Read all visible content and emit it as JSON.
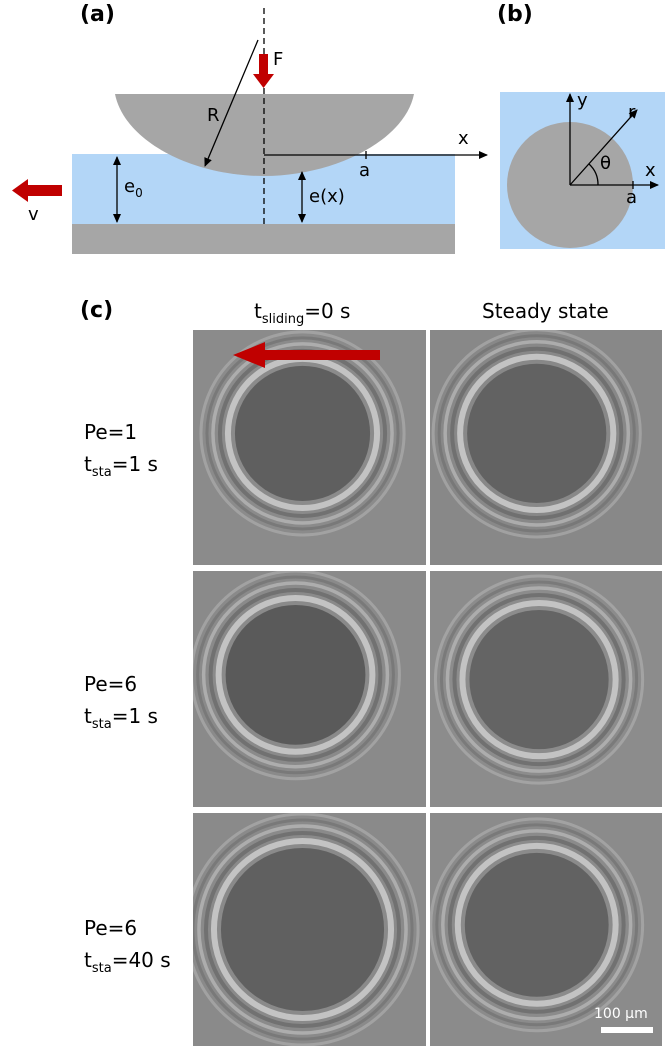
{
  "panel_a": {
    "label": "(a)",
    "labels": {
      "force": "F",
      "radius": "R",
      "x_axis": "x",
      "contact_radius": "a",
      "gap_far": "e",
      "gap_far_sub": "0",
      "gap_local": "e(x)",
      "velocity": "v"
    },
    "colors": {
      "sphere": "#a6a6a6",
      "liquid": "#b3d6f7",
      "substrate": "#a6a6a6",
      "arrow": "#c00000"
    }
  },
  "panel_b": {
    "label": "(b)",
    "labels": {
      "y_axis": "y",
      "r": "r",
      "theta": "θ",
      "x_axis": "x",
      "a": "a"
    }
  },
  "panel_c": {
    "label": "(c)",
    "columns": [
      {
        "main": "t",
        "sub": "sliding",
        "suffix": "=0 s"
      },
      {
        "main": "Steady state"
      }
    ],
    "rows": [
      {
        "pe": "Pe=1",
        "t_main": "t",
        "t_sub": "sta",
        "t_suffix": "=1 s"
      },
      {
        "pe": "Pe=6",
        "t_main": "t",
        "t_sub": "sta",
        "t_suffix": "=1 s"
      },
      {
        "pe": "Pe=6",
        "t_main": "t",
        "t_sub": "sta",
        "t_suffix": "=40 s"
      }
    ],
    "scale_bar": "100 µm"
  }
}
